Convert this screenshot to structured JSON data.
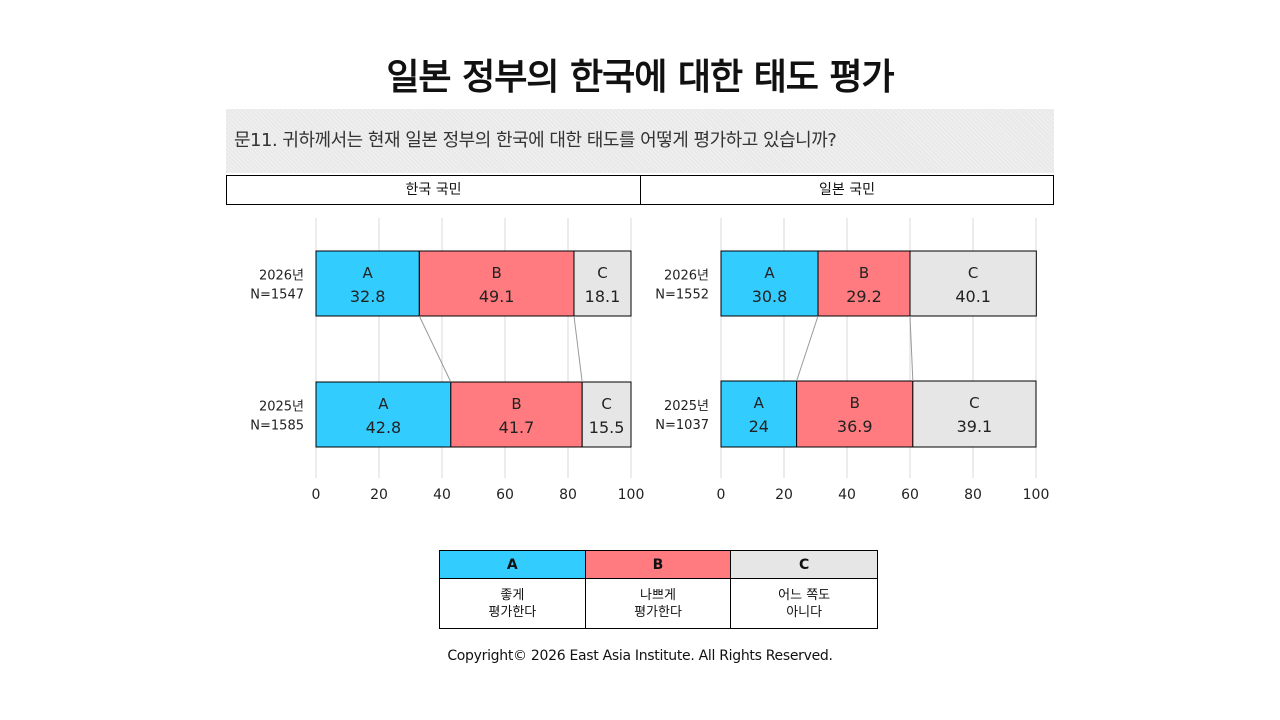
{
  "title": "일본 정부의 한국에 대한 태도 평가",
  "question": "문11. 귀하께서는 현재 일본 정부의 한국에 대한 태도를 어떻게 평가하고 있습니까?",
  "colors": {
    "A": "#33ccff",
    "B": "#ff7b7f",
    "C": "#e6e6e6"
  },
  "legend": [
    {
      "key": "A",
      "desc": "좋게\n평가한다"
    },
    {
      "key": "B",
      "desc": "나쁘게\n평가한다"
    },
    {
      "key": "C",
      "desc": "어느 쪽도\n아니다"
    }
  ],
  "copyright": "Copyright© 2026 East Asia Institute. All Rights Reserved.",
  "chart_data": [
    {
      "type": "bar",
      "orientation": "horizontal-stacked",
      "group": "한국 국민",
      "xlim": [
        0,
        100
      ],
      "x_ticks": [
        "0",
        "20",
        "40",
        "60",
        "80",
        "100"
      ],
      "grid": true,
      "categories": [
        {
          "year": "2026년",
          "n": "N=1547"
        },
        {
          "year": "2025년",
          "n": "N=1585"
        }
      ],
      "series": [
        {
          "name": "A",
          "values": [
            32.8,
            42.8
          ],
          "labels": [
            "32.8",
            "42.8"
          ]
        },
        {
          "name": "B",
          "values": [
            49.1,
            41.7
          ],
          "labels": [
            "49.1",
            "41.7"
          ]
        },
        {
          "name": "C",
          "values": [
            18.1,
            15.5
          ],
          "labels": [
            "18.1",
            "15.5"
          ]
        }
      ]
    },
    {
      "type": "bar",
      "orientation": "horizontal-stacked",
      "group": "일본 국민",
      "xlim": [
        0,
        100
      ],
      "x_ticks": [
        "0",
        "20",
        "40",
        "60",
        "80",
        "100"
      ],
      "grid": true,
      "categories": [
        {
          "year": "2026년",
          "n": "N=1552"
        },
        {
          "year": "2025년",
          "n": "N=1037"
        }
      ],
      "series": [
        {
          "name": "A",
          "values": [
            30.8,
            24
          ],
          "labels": [
            "30.8",
            "24"
          ]
        },
        {
          "name": "B",
          "values": [
            29.2,
            36.9
          ],
          "labels": [
            "29.2",
            "36.9"
          ]
        },
        {
          "name": "C",
          "values": [
            40.1,
            39.1
          ],
          "labels": [
            "40.1",
            "39.1"
          ]
        }
      ]
    }
  ]
}
